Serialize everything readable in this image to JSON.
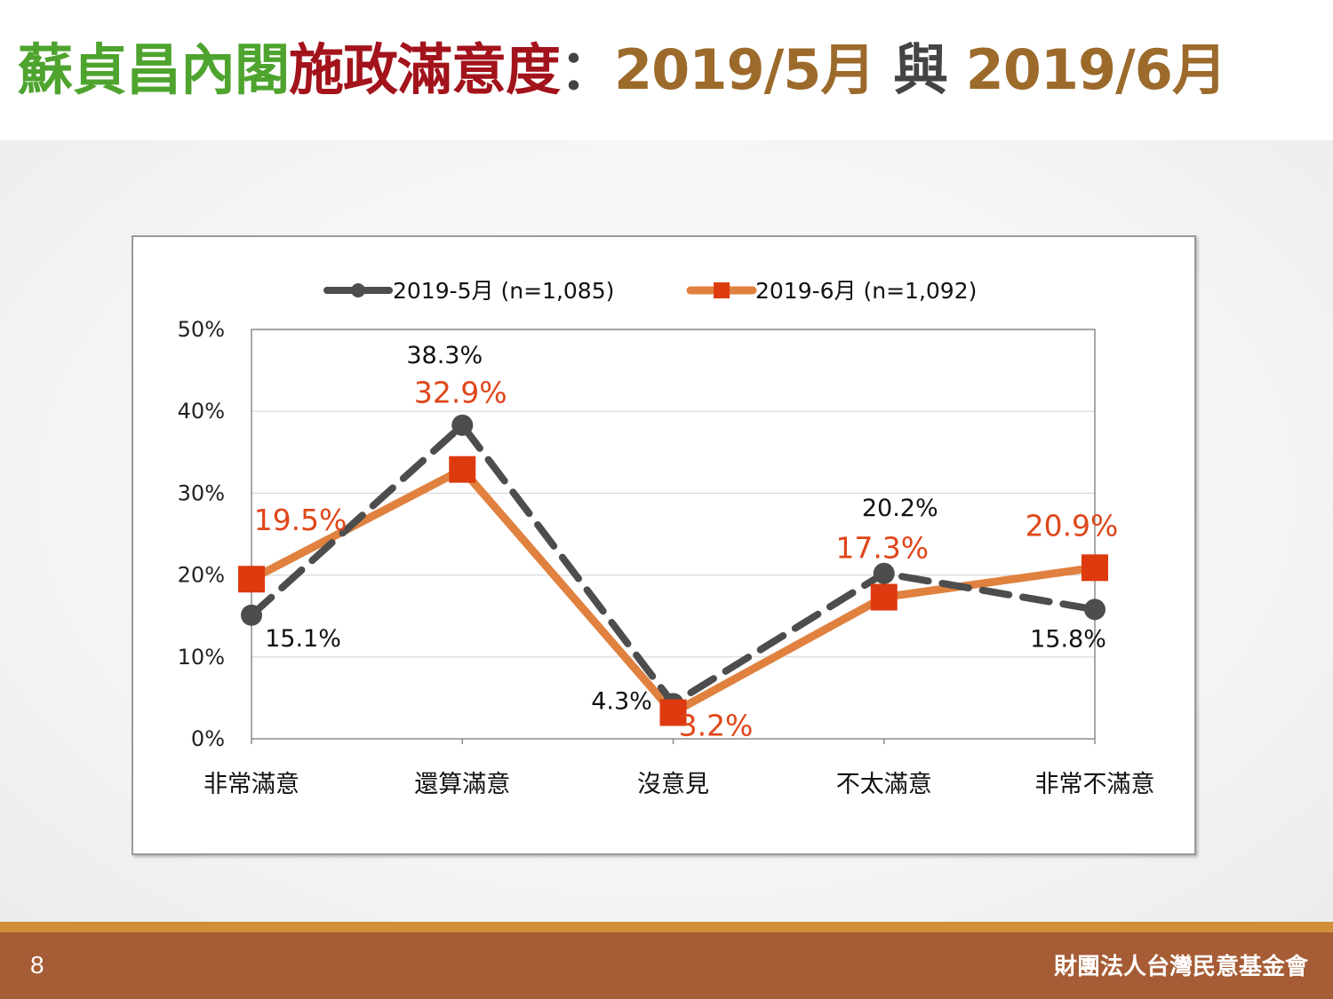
{
  "title": {
    "part1": "蘇貞昌內閣",
    "part2": "施政滿意度",
    "colon": "：",
    "part3": "2019/5月",
    "part4": " 與 ",
    "part5": "2019/6月"
  },
  "colors": {
    "title_green": "#4ea42e",
    "title_red": "#a3131b",
    "title_brown": "#9c6a2b",
    "series_may": "#4d4d4d",
    "series_june_line": "#e0813f",
    "series_june_marker": "#dd3a0f",
    "label_june": "#e0461a",
    "footer": "#a65c35"
  },
  "chart_data": {
    "type": "line",
    "categories": [
      "非常滿意",
      "還算滿意",
      "沒意見",
      "不太滿意",
      "非常不滿意"
    ],
    "ylim": [
      0,
      50
    ],
    "y_ticks": [
      0,
      10,
      20,
      30,
      40,
      50
    ],
    "y_tick_labels": [
      "0%",
      "10%",
      "20%",
      "30%",
      "40%",
      "50%"
    ],
    "grid": true,
    "legend_position": "top",
    "series": [
      {
        "name": "2019-5月",
        "legend_suffix": "(n=1,085)",
        "values": [
          15.1,
          38.3,
          4.3,
          20.2,
          15.8
        ],
        "labels": [
          "15.1%",
          "38.3%",
          "4.3%",
          "20.2%",
          "15.8%"
        ],
        "style": "dashed",
        "marker": "circle"
      },
      {
        "name": "2019-6月",
        "legend_suffix": "(n=1,092)",
        "values": [
          19.5,
          32.9,
          3.2,
          17.3,
          20.9
        ],
        "labels": [
          "19.5%",
          "32.9%",
          "3.2%",
          "17.3%",
          "20.9%"
        ],
        "style": "solid",
        "marker": "square"
      }
    ]
  },
  "footer": {
    "page_number": "8",
    "organization": "財團法人台灣民意基金會"
  }
}
